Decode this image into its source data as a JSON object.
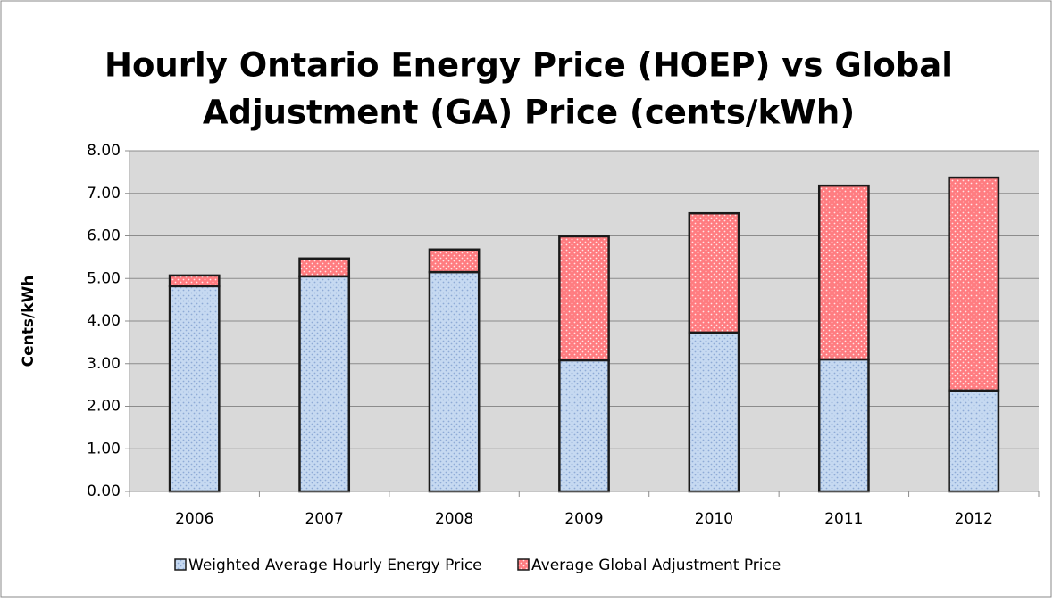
{
  "chart_data": {
    "type": "stacked_bar",
    "title": [
      "Hourly Ontario Energy Price (HOEP) vs Global",
      "Adjustment (GA) Price (cents/kWh)"
    ],
    "y_label": "Cents/kWh",
    "categories": [
      "2006",
      "2007",
      "2008",
      "2009",
      "2010",
      "2011",
      "2012"
    ],
    "series": [
      {
        "name": "Weighted Average Hourly Energy Price",
        "color": "#c6d9f1",
        "values": [
          4.82,
          5.05,
          5.15,
          3.08,
          3.73,
          3.1,
          2.37
        ]
      },
      {
        "name": "Average Global Adjustment Price",
        "color": "#ff7c80",
        "values": [
          0.25,
          0.42,
          0.53,
          2.91,
          2.8,
          4.08,
          5.0
        ]
      }
    ],
    "ylim": [
      0,
      8
    ],
    "yticks": [
      {
        "value": 0,
        "label": "0.00"
      },
      {
        "value": 1,
        "label": "1.00"
      },
      {
        "value": 2,
        "label": "2.00"
      },
      {
        "value": 3,
        "label": "3.00"
      },
      {
        "value": 4,
        "label": "4.00"
      },
      {
        "value": 5,
        "label": "5.00"
      },
      {
        "value": 6,
        "label": "6.00"
      },
      {
        "value": 7,
        "label": "7.00"
      },
      {
        "value": 8,
        "label": "8.00"
      }
    ],
    "grid": true,
    "legend": "bottom"
  }
}
